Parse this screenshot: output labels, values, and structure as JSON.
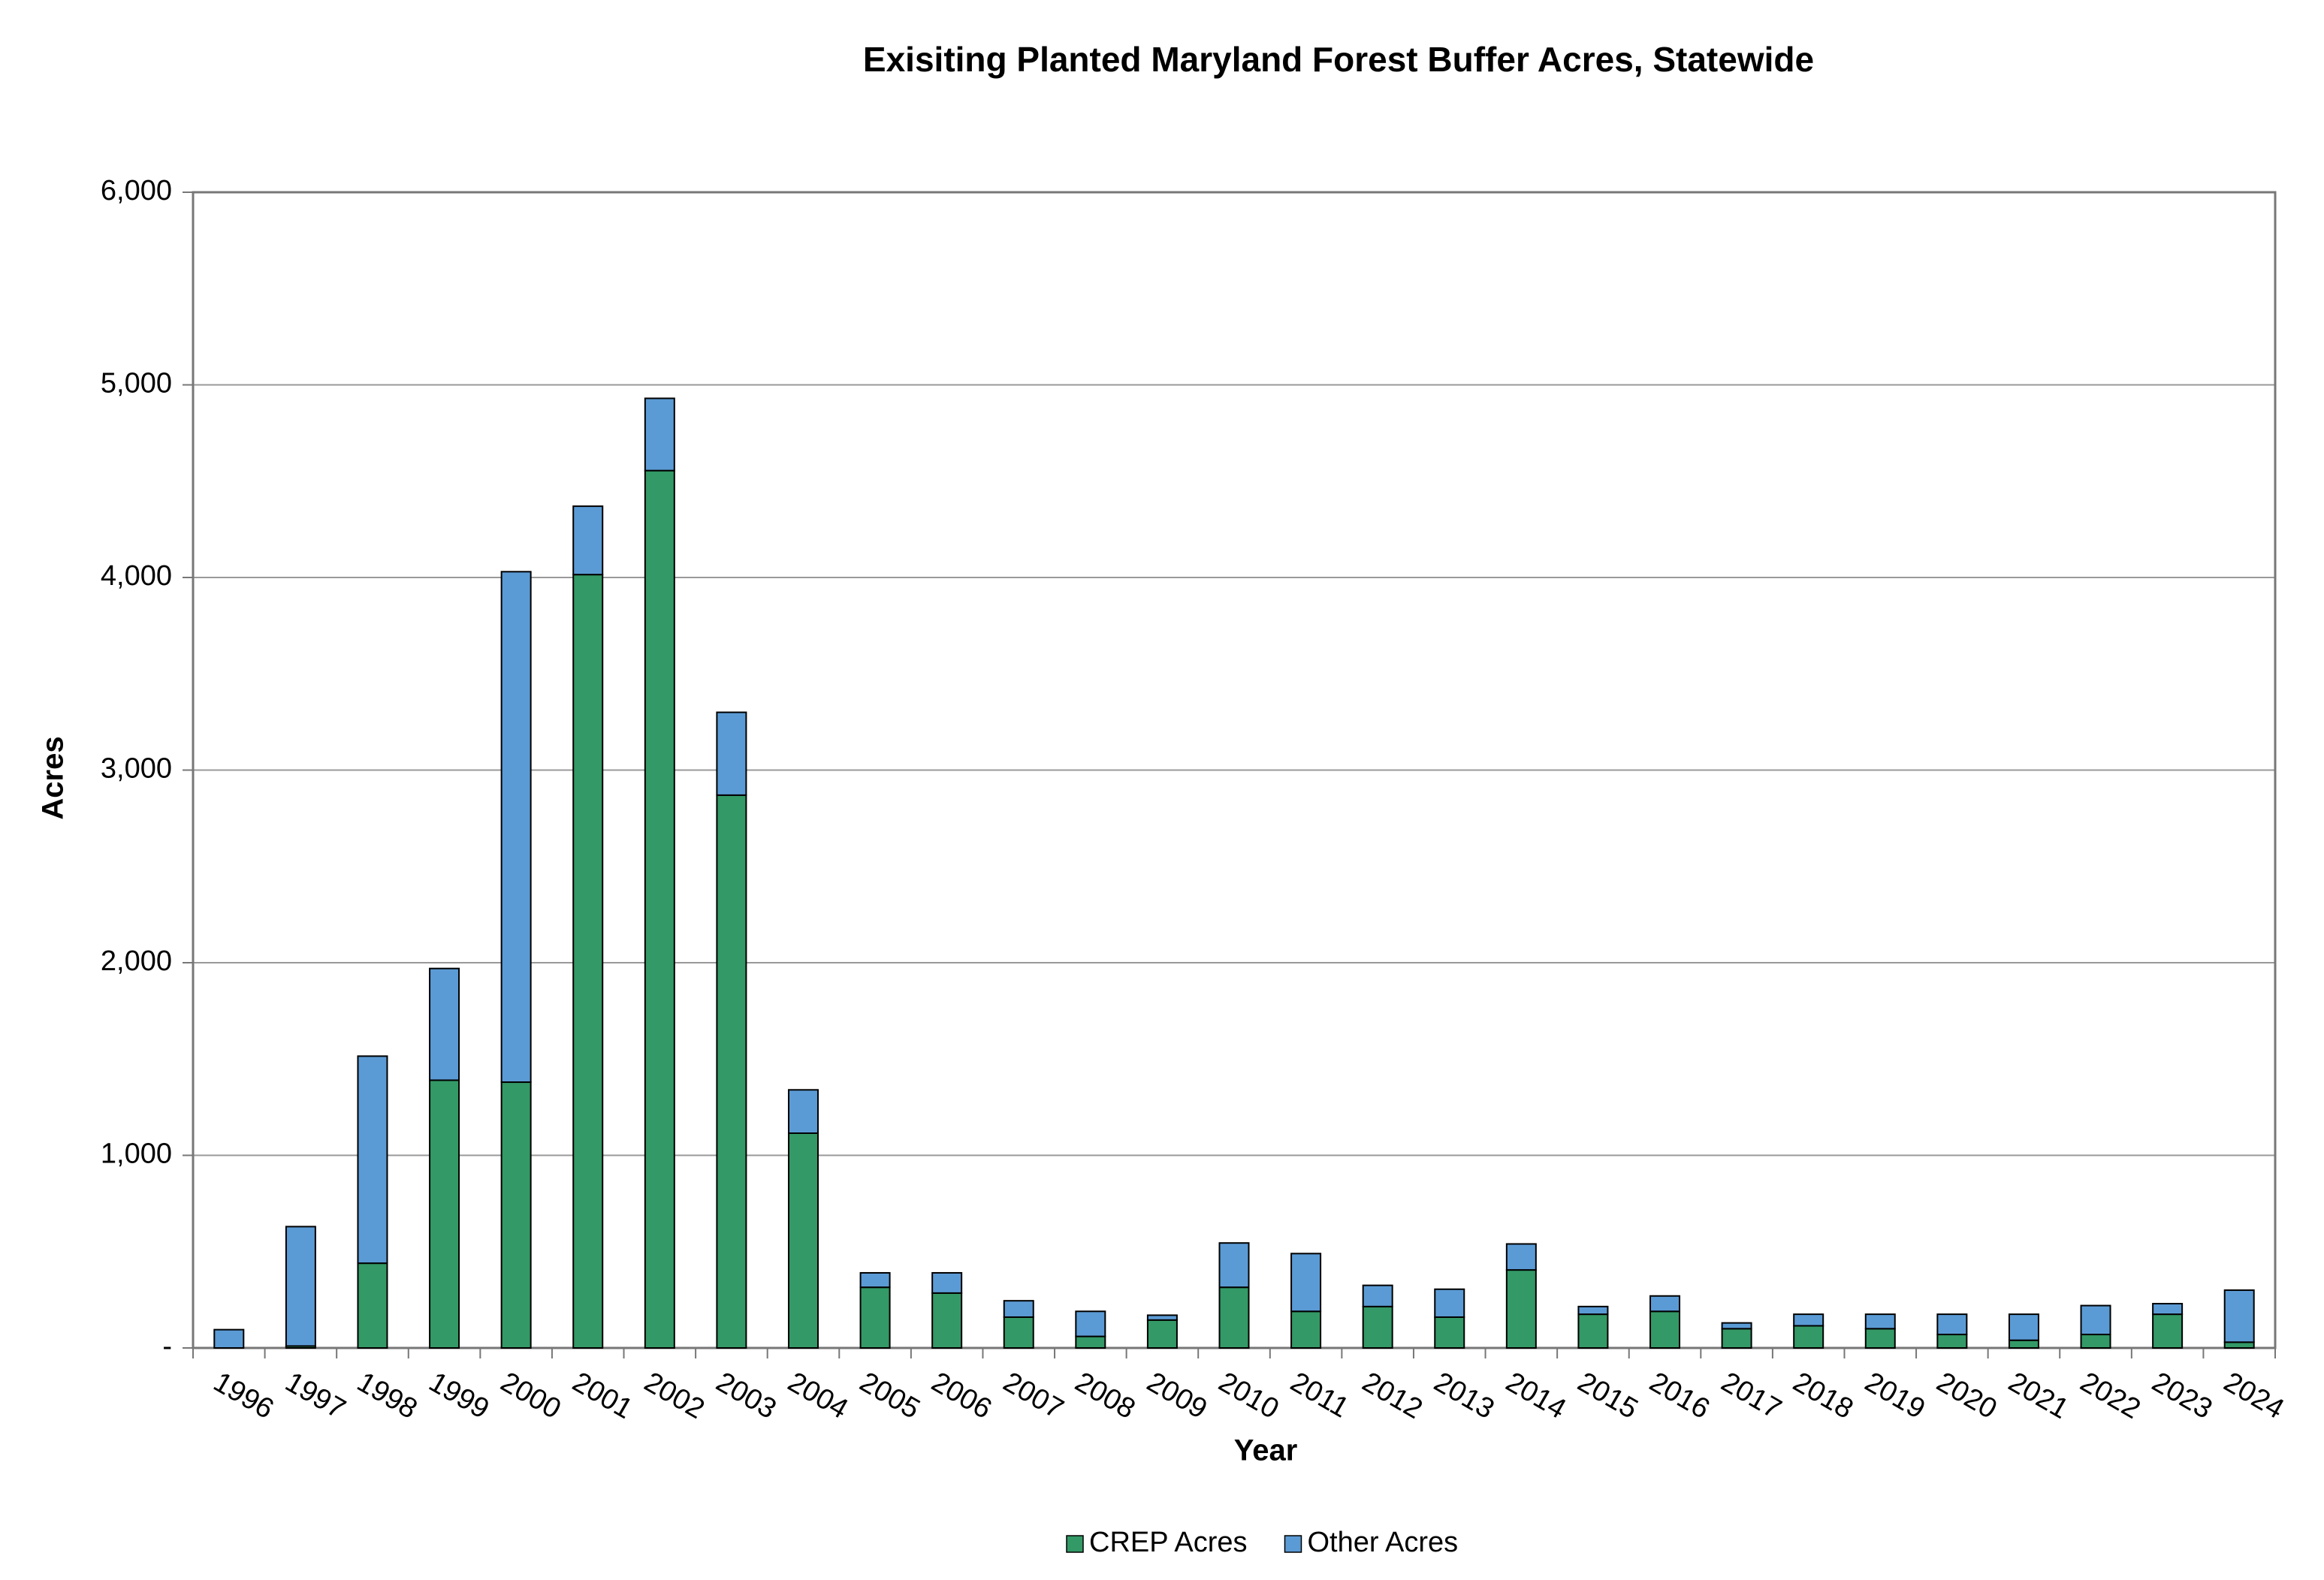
{
  "chart_data": {
    "type": "bar",
    "stacked": true,
    "title": "Exisiting Planted Maryland Forest Buffer Acres, Statewide",
    "x_label": "Year",
    "y_label": "Acres",
    "categories": [
      "1996",
      "1997",
      "1998",
      "1999",
      "2000",
      "2001",
      "2002",
      "2003",
      "2004",
      "2005",
      "2006",
      "2007",
      "2008",
      "2009",
      "2010",
      "2011",
      "2012",
      "2013",
      "2014",
      "2015",
      "2016",
      "2017",
      "2018",
      "2019",
      "2020",
      "2021",
      "2022",
      "2023",
      "2024"
    ],
    "series": [
      {
        "name": "CREP Acres",
        "color": "#339966",
        "values": [
          0,
          10,
          440,
          1390,
          1380,
          4015,
          4555,
          2870,
          1115,
          315,
          285,
          160,
          60,
          145,
          315,
          190,
          215,
          160,
          405,
          175,
          190,
          100,
          115,
          100,
          70,
          40,
          70,
          175,
          30
        ]
      },
      {
        "name": "Other Acres",
        "color": "#5b9bd5",
        "values": [
          95,
          620,
          1075,
          580,
          2650,
          355,
          375,
          430,
          225,
          75,
          105,
          85,
          130,
          25,
          230,
          300,
          110,
          145,
          135,
          40,
          80,
          30,
          60,
          75,
          105,
          135,
          150,
          55,
          270
        ]
      }
    ],
    "ylim": [
      0,
      6000
    ],
    "yticks": [
      {
        "value": 0,
        "label": "-"
      },
      {
        "value": 1000,
        "label": "1,000"
      },
      {
        "value": 2000,
        "label": "2,000"
      },
      {
        "value": 3000,
        "label": "3,000"
      },
      {
        "value": 4000,
        "label": "4,000"
      },
      {
        "value": 5000,
        "label": "5,000"
      },
      {
        "value": 6000,
        "label": "6,000"
      }
    ],
    "grid": true,
    "legend": "bottom"
  }
}
